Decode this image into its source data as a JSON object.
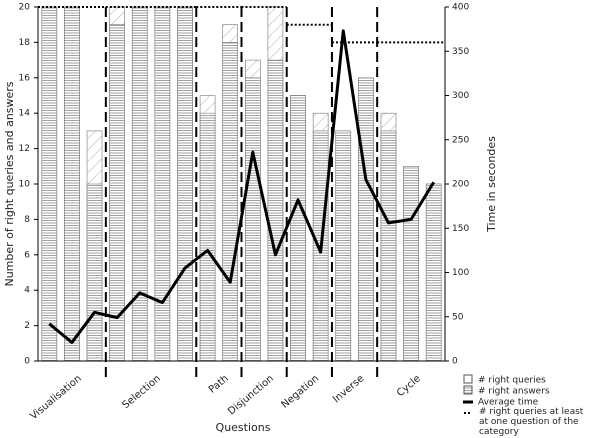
{
  "chart_data": {
    "type": "bar",
    "x_label": "Questions",
    "y_label": "Number of right queries and answers",
    "y2_label": "Time in secondes",
    "categories": [
      null,
      null,
      null,
      null,
      null,
      null,
      null,
      null,
      null,
      null,
      null,
      null,
      null,
      null,
      null,
      null,
      null,
      null
    ],
    "groups": [
      {
        "name": "Visualisation",
        "size": 3,
        "best": 20
      },
      {
        "name": "Selection",
        "size": 4,
        "best": 20
      },
      {
        "name": "Path",
        "size": 2,
        "best": 20
      },
      {
        "name": "Disjunction",
        "size": 2,
        "best": 20
      },
      {
        "name": "Negation",
        "size": 2,
        "best": 19
      },
      {
        "name": "Inverse",
        "size": 2,
        "best": 18
      },
      {
        "name": "Cycle",
        "size": 3,
        "best": 18
      }
    ],
    "best_name": "# right queries at least at one question of the category",
    "series": [
      {
        "name": "# right queries",
        "color": "#ffffff",
        "values": [
          20,
          20,
          13,
          20,
          20,
          20,
          20,
          15,
          19,
          17,
          20,
          15,
          14,
          13,
          16,
          14,
          11,
          10
        ]
      },
      {
        "name": "# right answers",
        "color": "#888888",
        "values": [
          20,
          20,
          10,
          19,
          20,
          20,
          20,
          14,
          18,
          16,
          17,
          15,
          13,
          13,
          16,
          13,
          11,
          10
        ]
      },
      {
        "name": "Average time",
        "color": "#000000",
        "axis": "y2",
        "values": [
          42,
          21,
          55,
          49,
          77,
          66,
          105,
          125,
          89,
          236,
          120,
          182,
          123,
          373,
          205,
          156,
          160,
          202
        ]
      }
    ],
    "ylim": [
      0,
      20
    ],
    "yticks": [
      0,
      2,
      4,
      6,
      8,
      10,
      12,
      14,
      16,
      18,
      20
    ],
    "y2lim": [
      0,
      400
    ],
    "y2ticks": [
      0,
      50,
      100,
      150,
      200,
      250,
      300,
      350,
      400
    ],
    "grid": false
  }
}
